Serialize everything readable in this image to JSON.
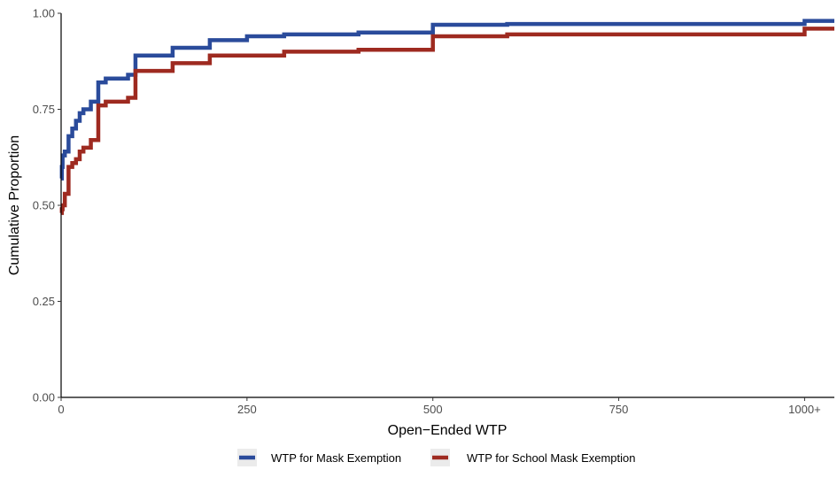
{
  "chart_data": {
    "type": "line",
    "xlabel": "Open−Ended WTP",
    "ylabel": "Cumulative Proportion",
    "xlim": [
      0,
      1040
    ],
    "ylim": [
      0,
      1
    ],
    "x_ticks": [
      {
        "value": 0,
        "label": "0"
      },
      {
        "value": 250,
        "label": "250"
      },
      {
        "value": 500,
        "label": "500"
      },
      {
        "value": 750,
        "label": "750"
      },
      {
        "value": 1000,
        "label": "1000+"
      }
    ],
    "y_ticks": [
      {
        "value": 0,
        "label": "0.00"
      },
      {
        "value": 0.25,
        "label": "0.25"
      },
      {
        "value": 0.5,
        "label": "0.50"
      },
      {
        "value": 0.75,
        "label": "0.75"
      },
      {
        "value": 1,
        "label": "1.00"
      }
    ],
    "grid": false,
    "legend_position": "bottom",
    "series": [
      {
        "name": "WTP for Mask Exemption",
        "color": "#2a4b9b",
        "step": true,
        "x": [
          0,
          1,
          2,
          5,
          10,
          15,
          20,
          25,
          30,
          40,
          50,
          60,
          75,
          90,
          100,
          150,
          200,
          250,
          300,
          400,
          500,
          600,
          1000,
          1040
        ],
        "y": [
          0.57,
          0.6,
          0.63,
          0.64,
          0.68,
          0.7,
          0.72,
          0.74,
          0.75,
          0.77,
          0.82,
          0.83,
          0.83,
          0.84,
          0.89,
          0.91,
          0.93,
          0.94,
          0.945,
          0.95,
          0.97,
          0.972,
          0.98,
          0.98
        ]
      },
      {
        "name": "WTP for School Mask Exemption",
        "color": "#9e2a20",
        "step": true,
        "x": [
          0,
          1,
          2,
          5,
          10,
          15,
          20,
          25,
          30,
          40,
          50,
          60,
          75,
          90,
          100,
          150,
          200,
          250,
          300,
          400,
          500,
          600,
          1000,
          1040
        ],
        "y": [
          0.48,
          0.49,
          0.5,
          0.53,
          0.6,
          0.61,
          0.62,
          0.64,
          0.65,
          0.67,
          0.76,
          0.77,
          0.77,
          0.78,
          0.85,
          0.87,
          0.89,
          0.89,
          0.9,
          0.905,
          0.94,
          0.945,
          0.96,
          0.96
        ]
      }
    ]
  }
}
